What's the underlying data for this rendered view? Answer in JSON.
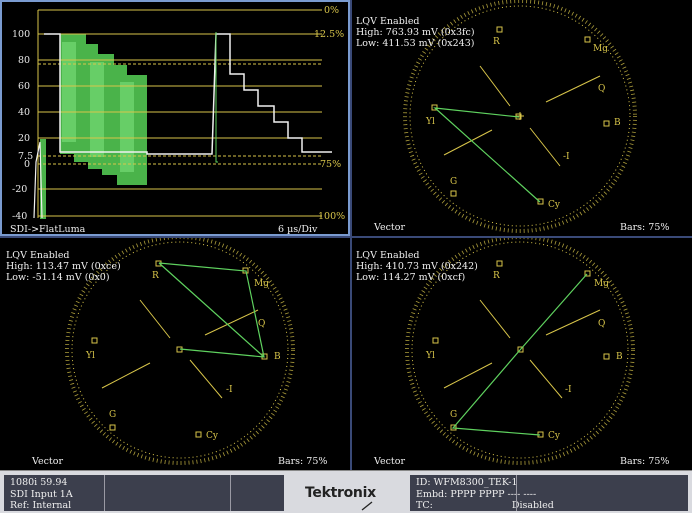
{
  "waveform": {
    "left_scale": [
      "100",
      "80",
      "60",
      "40",
      "20",
      "7.5",
      "0",
      "-20",
      "-40"
    ],
    "right_scale": [
      "0%",
      "12.5%",
      "75%",
      "100%"
    ],
    "source_label": "SDI->FlatLuma",
    "sweep_label": "6 µs/Div"
  },
  "vectors": [
    {
      "lqv": "LQV Enabled",
      "high": "High: 763.93 mV (0x3fc)",
      "low": "Low: 411.53 mV (0x243)",
      "name": "Vector",
      "bars": "Bars: 75%"
    },
    {
      "lqv": "LQV Enabled",
      "high": "High: 113.47 mV (0xce)",
      "low": "Low: -51.14 mV (0x0)",
      "name": "Vector",
      "bars": "Bars: 75%"
    },
    {
      "lqv": "LQV Enabled",
      "high": "High: 410.73 mV (0x242)",
      "low": "Low: 114.27 mV (0xcf)",
      "name": "Vector",
      "bars": "Bars: 75%"
    }
  ],
  "vector_targets": {
    "r": "R",
    "mg": "Mg",
    "b": "B",
    "cy": "Cy",
    "g": "G",
    "yl": "Yl",
    "q": "Q",
    "i": "-I"
  },
  "status": {
    "format": "1080i 59.94",
    "input": "SDI Input 1A",
    "ref": "Ref: Internal",
    "brand": "Tektronix",
    "id": "ID: WFM8300_TEK-1",
    "embd": "Embd: PPPP PPPP ---- ----",
    "tc_label": "TC:",
    "tc_value": "Disabled"
  },
  "colors": {
    "graticule": "#d8c54a",
    "trace": "#5fd25f",
    "selected_border": "#7a9bd0",
    "status_bg": "#3c3f4d"
  }
}
